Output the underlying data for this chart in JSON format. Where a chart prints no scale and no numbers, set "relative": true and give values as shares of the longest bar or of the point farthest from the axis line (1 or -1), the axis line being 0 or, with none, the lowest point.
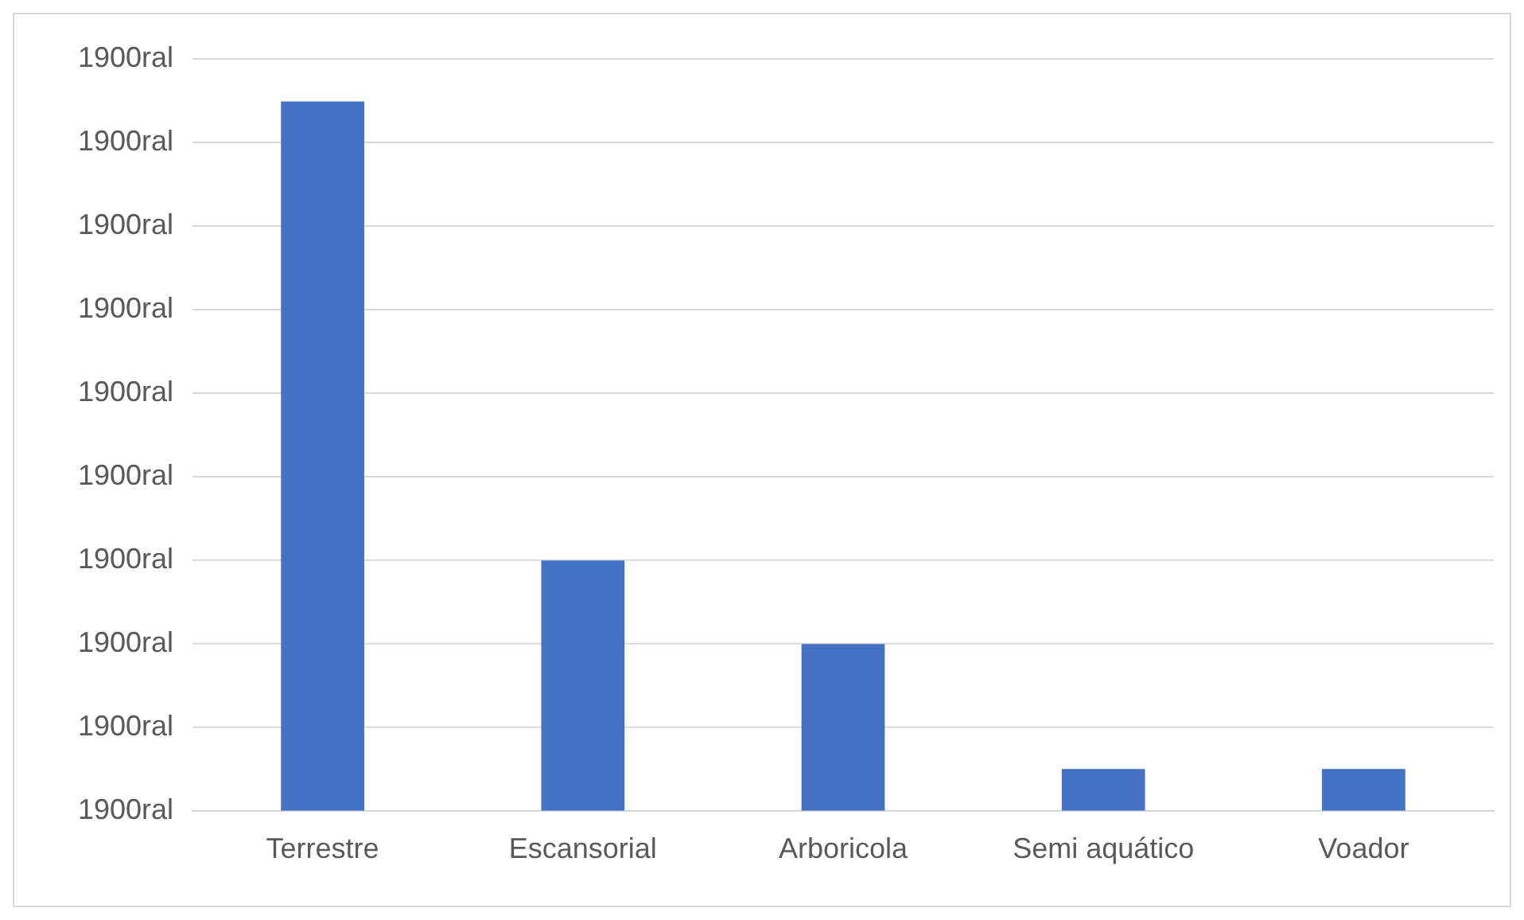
{
  "chart_data": {
    "type": "bar",
    "relative": true,
    "categories": [
      "Terrestre",
      "Escansorial",
      "Arboricola",
      "Semi aquático",
      "Voador"
    ],
    "values": [
      1,
      0.353,
      0.235,
      0.059,
      0.059
    ],
    "color": "#4472c4",
    "annotations": [
      "1900ral",
      "1900ral",
      "1900ral",
      "1900ral",
      "1900ral",
      "1900ral",
      "1900ral",
      "1900ral",
      "1900ral",
      "1900ral"
    ],
    "grid": "y",
    "legend": false
  }
}
